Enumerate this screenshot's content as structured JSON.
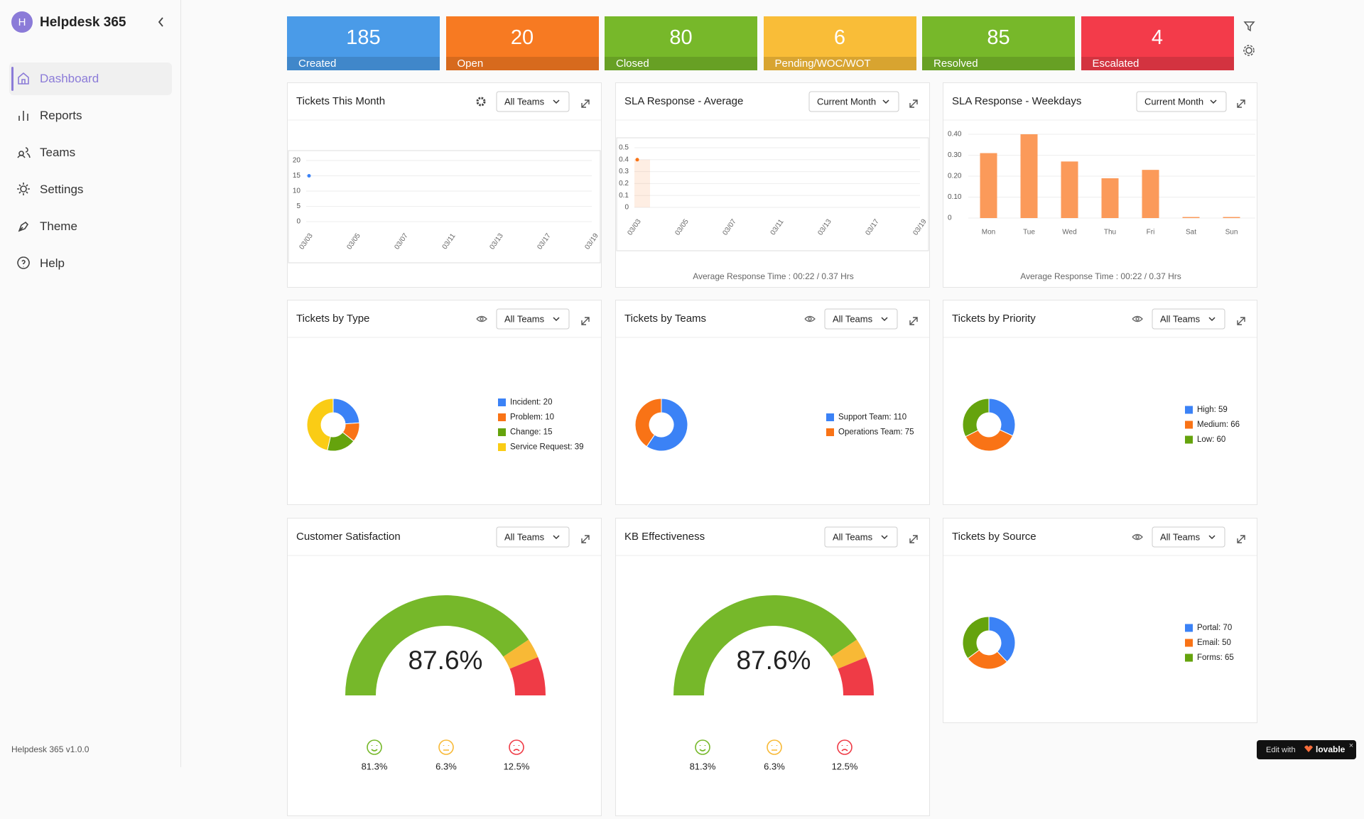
{
  "sidebar": {
    "initial": "H",
    "brand": "Helpdesk 365",
    "nav": [
      "Dashboard",
      "Reports",
      "Teams",
      "Settings",
      "Theme",
      "Help"
    ],
    "version": "Helpdesk 365 v1.0.0"
  },
  "stats": [
    {
      "value": 185,
      "label": "Created",
      "color": "#4a9be8"
    },
    {
      "value": 20,
      "label": "Open",
      "color": "#f77a22"
    },
    {
      "value": 80,
      "label": "Closed",
      "color": "#77b82a"
    },
    {
      "value": 6,
      "label": "Pending/WOC/WOT",
      "color": "#f9bd38"
    },
    {
      "value": 85,
      "label": "Resolved",
      "color": "#77b82a"
    },
    {
      "value": 4,
      "label": "Escalated",
      "color": "#f33b4a"
    }
  ],
  "chart_data": [
    {
      "type": "line",
      "title": "Tickets This Month",
      "filter": "All Teams",
      "x": [
        "03/03",
        "03/05",
        "03/07",
        "03/11",
        "03/13",
        "03/17",
        "03/19"
      ],
      "series": [
        {
          "color": "#3b82f6",
          "values": [
            15,
            null,
            null,
            null,
            null,
            null,
            null
          ]
        }
      ],
      "ylim": [
        0,
        20
      ],
      "yticks": [
        0,
        5,
        10,
        15,
        20
      ],
      "grid": true
    },
    {
      "type": "line",
      "title": "SLA Response - Average",
      "filter": "Current Month",
      "x": [
        "03/03",
        "03/05",
        "03/07",
        "03/11",
        "03/13",
        "03/17",
        "03/19"
      ],
      "series": [
        {
          "color": "#f97316",
          "values": [
            0.4,
            null,
            null,
            null,
            null,
            null,
            null
          ]
        }
      ],
      "ylim": [
        0,
        0.5
      ],
      "yticks": [
        0,
        0.1,
        0.2,
        0.3,
        0.4,
        0.5
      ],
      "grid": true,
      "area": true,
      "note": "Average Response Time : 00:22 / 0.37 Hrs"
    },
    {
      "type": "bar",
      "title": "SLA Response - Weekdays",
      "filter": "Current Month",
      "categories": [
        "Mon",
        "Tue",
        "Wed",
        "Thu",
        "Fri",
        "Sat",
        "Sun"
      ],
      "values": [
        0.31,
        0.4,
        0.27,
        0.19,
        0.23,
        0.005,
        0.005
      ],
      "color": "#fb9a5a",
      "ylim": [
        0,
        0.4
      ],
      "yticks": [
        0,
        {
          "value": 0.1,
          "label": "0.10"
        },
        {
          "value": 0.2,
          "label": "0.20"
        },
        {
          "value": 0.3,
          "label": "0.30"
        },
        {
          "value": 0.4,
          "label": "0.40"
        }
      ],
      "grid": true,
      "note": "Average Response Time : 00:22 / 0.37 Hrs"
    },
    {
      "type": "pie",
      "title": "Tickets by Type",
      "filter": "All Teams",
      "labels": [
        "Incident: 20",
        "Problem: 10",
        "Change: 15",
        "Service Request: 39"
      ],
      "values": [
        20,
        10,
        15,
        39
      ],
      "colors": [
        "#3b82f6",
        "#f97316",
        "#65a30d",
        "#facc15"
      ]
    },
    {
      "type": "pie",
      "title": "Tickets by Teams",
      "filter": "All Teams",
      "labels": [
        "Support Team: 110",
        "Operations Team: 75"
      ],
      "values": [
        110,
        75
      ],
      "colors": [
        "#3b82f6",
        "#f97316"
      ]
    },
    {
      "type": "pie",
      "title": "Tickets by Priority",
      "filter": "All Teams",
      "labels": [
        "High: 59",
        "Medium: 66",
        "Low: 60"
      ],
      "values": [
        59,
        66,
        60
      ],
      "colors": [
        "#3b82f6",
        "#f97316",
        "#65a30d"
      ]
    },
    {
      "type": "gauge",
      "title": "Customer Satisfaction",
      "filter": "All Teams",
      "values": [
        81.3,
        6.3,
        12.5
      ],
      "value_labels": [
        "81.3%",
        "6.3%",
        "12.5%"
      ],
      "colors": [
        "#76b82a",
        "#f8b936",
        "#ef3b46"
      ],
      "center": {
        "value": 87.6,
        "label": "87.6%"
      }
    },
    {
      "type": "gauge",
      "title": "KB Effectiveness",
      "filter": "All Teams",
      "values": [
        81.3,
        6.3,
        12.5
      ],
      "value_labels": [
        "81.3%",
        "6.3%",
        "12.5%"
      ],
      "colors": [
        "#76b82a",
        "#f8b936",
        "#ef3b46"
      ],
      "center": {
        "value": 87.6,
        "label": "87.6%"
      }
    },
    {
      "type": "pie",
      "title": "Tickets by Source",
      "filter": "All Teams",
      "labels": [
        "Portal: 70",
        "Email: 50",
        "Forms: 65"
      ],
      "values": [
        70,
        50,
        65
      ],
      "colors": [
        "#3b82f6",
        "#f97316",
        "#65a30d"
      ]
    }
  ],
  "badge": {
    "text": "Edit with",
    "brand": "lovable"
  }
}
